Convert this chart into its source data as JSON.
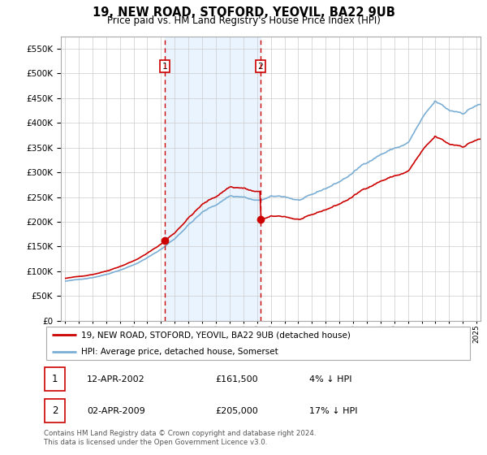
{
  "title": "19, NEW ROAD, STOFORD, YEOVIL, BA22 9UB",
  "subtitle": "Price paid vs. HM Land Registry's House Price Index (HPI)",
  "legend_line1": "19, NEW ROAD, STOFORD, YEOVIL, BA22 9UB (detached house)",
  "legend_line2": "HPI: Average price, detached house, Somerset",
  "table_rows": [
    {
      "num": "1",
      "date": "12-APR-2002",
      "price": "£161,500",
      "hpi": "4% ↓ HPI"
    },
    {
      "num": "2",
      "date": "02-APR-2009",
      "price": "£205,000",
      "hpi": "17% ↓ HPI"
    }
  ],
  "footnote": "Contains HM Land Registry data © Crown copyright and database right 2024.\nThis data is licensed under the Open Government Licence v3.0.",
  "sale1_year": 2002.28,
  "sale1_price": 161500,
  "sale2_year": 2009.25,
  "sale2_price": 205000,
  "vline1_x": 2002.28,
  "vline2_x": 2009.25,
  "hpi_color": "#7aaed4",
  "price_color": "#cc0000",
  "vline_color": "#cc0000",
  "bg_span_color": "#ddeeff",
  "ylim_min": 0,
  "ylim_max": 575000,
  "xlim_min": 1994.7,
  "xlim_max": 2025.3
}
